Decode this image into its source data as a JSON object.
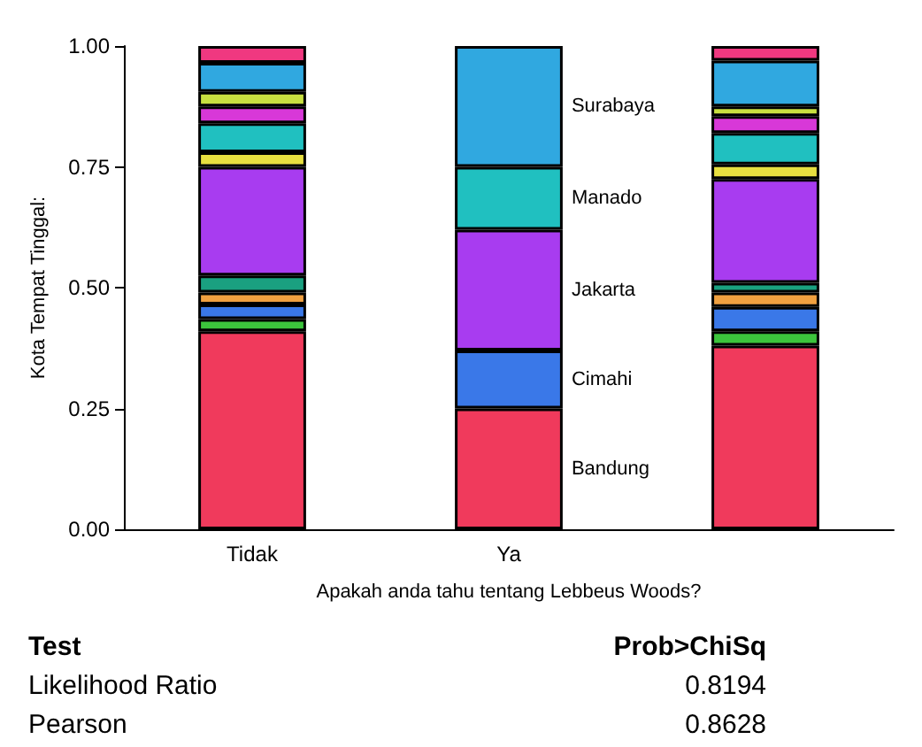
{
  "chart_data": {
    "type": "bar",
    "stacked": true,
    "categories": [
      "Tidak",
      "Ya",
      null
    ],
    "xlabel": "Apakah anda tahu tentang Lebbeus Woods?",
    "ylabel": "Kota Tempat Tinggal:",
    "ylim": [
      0,
      1
    ],
    "yticks": [
      {
        "value": 0,
        "label": "0.00"
      },
      {
        "value": 0.25,
        "label": "0.25"
      },
      {
        "value": 0.5,
        "label": "0.50"
      },
      {
        "value": 0.75,
        "label": "0.75"
      },
      {
        "value": 1,
        "label": "1.00"
      }
    ],
    "series": [
      {
        "name": "Bandung",
        "color": "#f03a5c",
        "values": [
          0.41,
          0.25,
          0.38
        ]
      },
      {
        "color": "#3cc43c",
        "values": [
          0.025,
          0,
          0.03
        ]
      },
      {
        "name": "Cimahi",
        "color": "#3a78e8",
        "values": [
          0.03,
          0.12,
          0.05
        ]
      },
      {
        "color": "#f0a040",
        "values": [
          0.025,
          0,
          0.03
        ]
      },
      {
        "color": "#1aa080",
        "values": [
          0.035,
          0,
          0.02
        ]
      },
      {
        "name": "Jakarta",
        "color": "#a83cf0",
        "values": [
          0.225,
          0.25,
          0.215
        ]
      },
      {
        "color": "#e8e040",
        "values": [
          0.03,
          0,
          0.03
        ]
      },
      {
        "name": "Manado",
        "color": "#20c0c0",
        "values": [
          0.06,
          0.13,
          0.065
        ]
      },
      {
        "color": "#d838d8",
        "values": [
          0.035,
          0,
          0.035
        ]
      },
      {
        "color": "#c8e040",
        "values": [
          0.03,
          0,
          0.02
        ]
      },
      {
        "name": "Surabaya",
        "color": "#30a8e0",
        "values": [
          0.06,
          0.25,
          0.095
        ]
      },
      {
        "color": "#f03880",
        "values": [
          0.035,
          0,
          0.03
        ]
      }
    ],
    "annotations": [
      "Test",
      "Prob>ChiSq",
      "Likelihood Ratio",
      "0.8194",
      "Pearson",
      "0.8628"
    ],
    "legend": false,
    "grid": false
  }
}
